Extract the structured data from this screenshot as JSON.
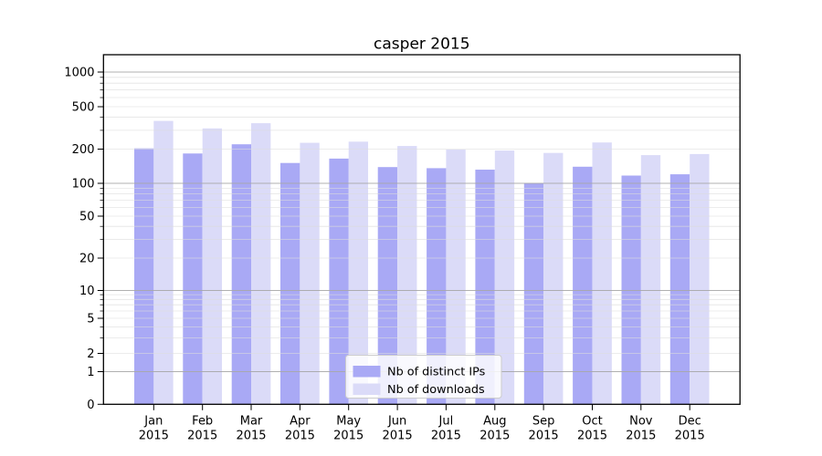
{
  "figure": {
    "title": "casper 2015"
  },
  "chart_data": {
    "type": "bar",
    "title": "casper 2015",
    "xlabel": "",
    "ylabel": "",
    "yscale": "symlog",
    "ylim": [
      0,
      1000
    ],
    "grid": true,
    "categories": [
      "Jan 2015",
      "Feb 2015",
      "Mar 2015",
      "Apr 2015",
      "May 2015",
      "Jun 2015",
      "Jul 2015",
      "Aug 2015",
      "Sep 2015",
      "Oct 2015",
      "Nov 2015",
      "Dec 2015"
    ],
    "months": [
      "Jan",
      "Feb",
      "Mar",
      "Apr",
      "May",
      "Jun",
      "Jul",
      "Aug",
      "Sep",
      "Oct",
      "Nov",
      "Dec"
    ],
    "year": "2015",
    "yticks": [
      0,
      1,
      2,
      5,
      10,
      20,
      50,
      100,
      200,
      500,
      1000
    ],
    "series": [
      {
        "name": "Nb of distinct IPs",
        "color": "#a9a9f5",
        "values": [
          203,
          183,
          222,
          151,
          165,
          139,
          136,
          132,
          100,
          140,
          117,
          120
        ]
      },
      {
        "name": "Nb of downloads",
        "color": "#dbdbf8",
        "values": [
          368,
          313,
          350,
          229,
          235,
          214,
          198,
          194,
          185,
          231,
          177,
          181
        ]
      }
    ],
    "legend": {
      "position": "lower center",
      "labels": [
        "Nb of distinct IPs",
        "Nb of downloads"
      ]
    }
  },
  "colors": {
    "background": "#ffffff",
    "bar_distinct_ips": "#a9a9f5",
    "bar_downloads": "#dbdbf8",
    "grid_major": "#a8a8a8",
    "grid_minor": "#dcdcdc",
    "axis": "#000000",
    "legend_border": "#cccccc",
    "legend_background": "rgba(255,255,255,0.82)"
  }
}
